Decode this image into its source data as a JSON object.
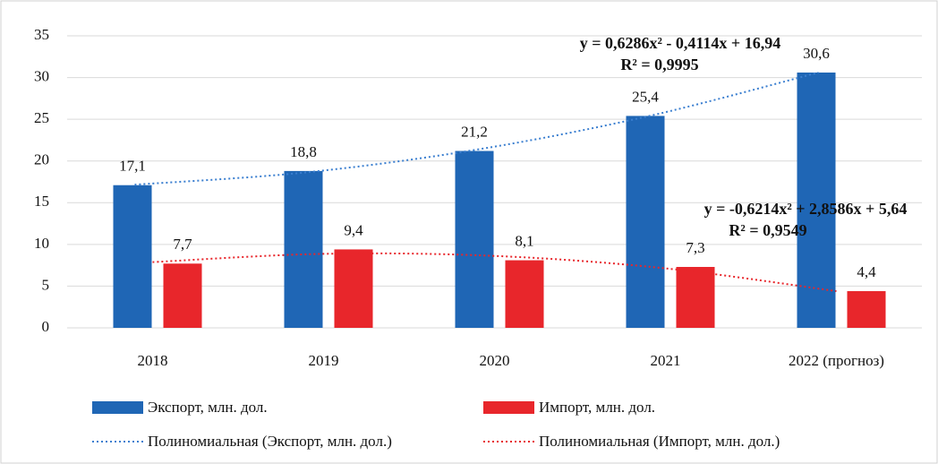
{
  "chart_data": {
    "type": "bar",
    "categories": [
      "2018",
      "2019",
      "2020",
      "2021",
      "2022 (прогноз)"
    ],
    "series": [
      {
        "name": "Экспорт, млн. дол.",
        "color": "#1f66b5",
        "values": [
          17.1,
          18.8,
          21.2,
          25.4,
          30.6
        ],
        "value_labels": [
          "17,1",
          "18,8",
          "21,2",
          "25,4",
          "30,6"
        ]
      },
      {
        "name": "Импорт, млн. дол.",
        "color": "#e8262b",
        "values": [
          7.7,
          9.4,
          8.1,
          7.3,
          4.4
        ],
        "value_labels": [
          "7,7",
          "9,4",
          "8,1",
          "7,3",
          "4,4"
        ]
      }
    ],
    "trendlines": [
      {
        "name": "Полиномиальная (Экспорт, млн. дол.)",
        "color": "#3b7fd0",
        "style": "dotted",
        "values": [
          17.16,
          18.63,
          21.36,
          25.35,
          30.6
        ]
      },
      {
        "name": "Полиномиальная (Импорт, млн. дол.)",
        "color": "#e8262b",
        "style": "dotted",
        "values": [
          7.88,
          8.87,
          8.62,
          7.13,
          4.4
        ]
      }
    ],
    "annotations": [
      {
        "text": "y = 0,6286x² - 0,4114x + 16,94"
      },
      {
        "text": "R² = 0,9995"
      },
      {
        "text": "y = -0,6214x² + 2,8586x + 5,64"
      },
      {
        "text": "R² = 0,9549"
      }
    ],
    "ylim": [
      0,
      35
    ],
    "yticks": [
      0,
      5,
      10,
      15,
      20,
      25,
      30,
      35
    ],
    "grid": true,
    "legend": "bottom"
  }
}
